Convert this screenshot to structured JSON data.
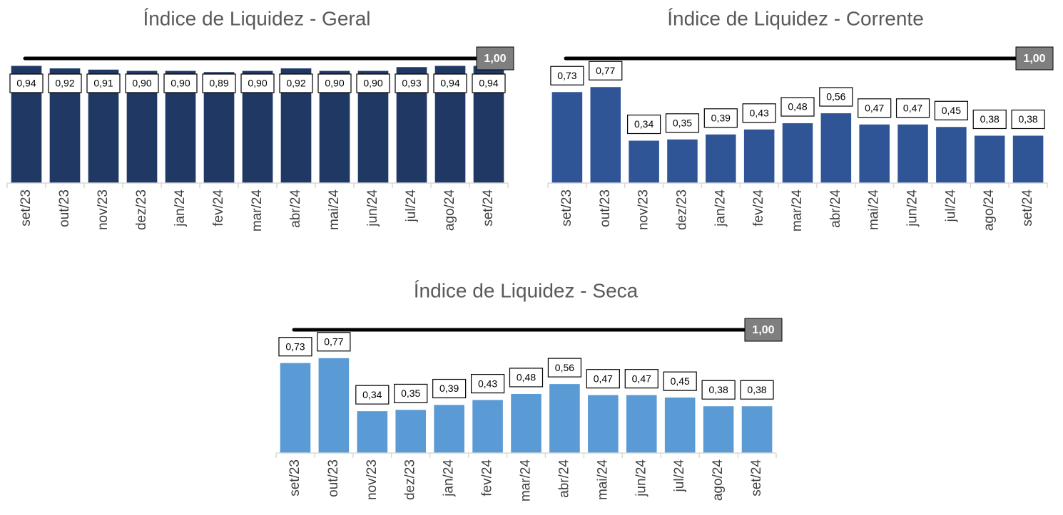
{
  "chart_data": [
    {
      "type": "bar",
      "title": "Índice de Liquidez - Geral",
      "categories": [
        "set/23",
        "out/23",
        "nov/23",
        "dez/23",
        "jan/24",
        "fev/24",
        "mar/24",
        "abr/24",
        "mai/24",
        "jun/24",
        "jul/24",
        "ago/24",
        "set/24"
      ],
      "values": [
        0.94,
        0.92,
        0.91,
        0.9,
        0.9,
        0.89,
        0.9,
        0.92,
        0.9,
        0.9,
        0.93,
        0.94,
        0.94
      ],
      "value_labels": [
        "0,94",
        "0,92",
        "0,91",
        "0,90",
        "0,90",
        "0,89",
        "0,90",
        "0,92",
        "0,90",
        "0,90",
        "0,93",
        "0,94",
        "0,94"
      ],
      "color": "#1f3864",
      "ylim": [
        0,
        1
      ],
      "reference_line": {
        "value": 1,
        "label": "1,00"
      }
    },
    {
      "type": "bar",
      "title": "Índice de Liquidez - Corrente",
      "categories": [
        "set/23",
        "out/23",
        "nov/23",
        "dez/23",
        "jan/24",
        "fev/24",
        "mar/24",
        "abr/24",
        "mai/24",
        "jun/24",
        "jul/24",
        "ago/24",
        "set/24"
      ],
      "values": [
        0.73,
        0.77,
        0.34,
        0.35,
        0.39,
        0.43,
        0.48,
        0.56,
        0.47,
        0.47,
        0.45,
        0.38,
        0.38
      ],
      "value_labels": [
        "0,73",
        "0,77",
        "0,34",
        "0,35",
        "0,39",
        "0,43",
        "0,48",
        "0,56",
        "0,47",
        "0,47",
        "0,45",
        "0,38",
        "0,38"
      ],
      "color": "#2f5597",
      "ylim": [
        0,
        1
      ],
      "reference_line": {
        "value": 1,
        "label": "1,00"
      }
    },
    {
      "type": "bar",
      "title": "Índice de Liquidez - Seca",
      "categories": [
        "set/23",
        "out/23",
        "nov/23",
        "dez/23",
        "jan/24",
        "fev/24",
        "mar/24",
        "abr/24",
        "mai/24",
        "jun/24",
        "jul/24",
        "ago/24",
        "set/24"
      ],
      "values": [
        0.73,
        0.77,
        0.34,
        0.35,
        0.39,
        0.43,
        0.48,
        0.56,
        0.47,
        0.47,
        0.45,
        0.38,
        0.38
      ],
      "value_labels": [
        "0,73",
        "0,77",
        "0,34",
        "0,35",
        "0,39",
        "0,43",
        "0,48",
        "0,56",
        "0,47",
        "0,47",
        "0,45",
        "0,38",
        "0,38"
      ],
      "color": "#5b9bd5",
      "ylim": [
        0,
        1
      ],
      "reference_line": {
        "value": 1,
        "label": "1,00"
      }
    }
  ]
}
